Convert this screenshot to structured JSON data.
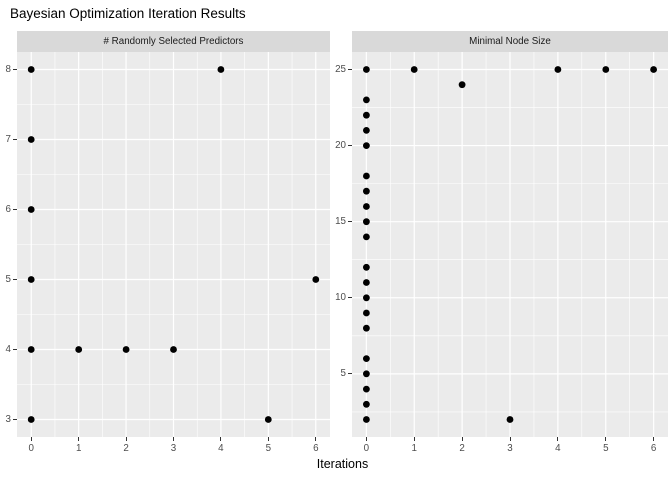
{
  "title": "Bayesian Optimization Iteration Results",
  "xlabel": "Iterations",
  "theme": {
    "background": "#FFFFFF",
    "panel_bg": "#EBEBEB",
    "strip_bg": "#D9D9D9",
    "grid_color": "#FFFFFF",
    "point_color": "#000000",
    "tick_color": "#333333",
    "tick_label_color": "#4D4D4D",
    "strip_text_color": "#1A1A1A",
    "title_color": "#000000"
  },
  "chart_data": [
    {
      "type": "scatter",
      "facet_title": "# Randomly Selected Predictors",
      "points": [
        [
          0,
          8
        ],
        [
          0,
          7
        ],
        [
          0,
          6
        ],
        [
          0,
          5
        ],
        [
          0,
          4
        ],
        [
          0,
          3
        ],
        [
          1,
          4
        ],
        [
          2,
          4
        ],
        [
          3,
          4
        ],
        [
          4,
          8
        ],
        [
          5,
          3
        ],
        [
          6,
          5
        ]
      ],
      "xlim": [
        -0.3,
        6.3
      ],
      "ylim": [
        2.75,
        8.25
      ],
      "xticks": [
        0,
        1,
        2,
        3,
        4,
        5,
        6
      ],
      "yticks": [
        3,
        4,
        5,
        6,
        7,
        8
      ],
      "xminor": [
        0.5,
        1.5,
        2.5,
        3.5,
        4.5,
        5.5
      ],
      "yminor": [
        3.5,
        4.5,
        5.5,
        6.5,
        7.5
      ],
      "grid": true,
      "legend": "none"
    },
    {
      "type": "scatter",
      "facet_title": "Minimal Node Size",
      "points": [
        [
          0,
          25
        ],
        [
          0,
          23
        ],
        [
          0,
          22
        ],
        [
          0,
          21
        ],
        [
          0,
          20
        ],
        [
          0,
          18
        ],
        [
          0,
          17
        ],
        [
          0,
          16
        ],
        [
          0,
          15
        ],
        [
          0,
          14
        ],
        [
          0,
          12
        ],
        [
          0,
          11
        ],
        [
          0,
          10
        ],
        [
          0,
          9
        ],
        [
          0,
          8
        ],
        [
          0,
          6
        ],
        [
          0,
          5
        ],
        [
          0,
          4
        ],
        [
          0,
          3
        ],
        [
          0,
          2
        ],
        [
          1,
          25
        ],
        [
          2,
          24
        ],
        [
          3,
          2
        ],
        [
          4,
          25
        ],
        [
          5,
          25
        ],
        [
          6,
          25
        ]
      ],
      "xlim": [
        -0.3,
        6.3
      ],
      "ylim": [
        0.85,
        26.15
      ],
      "xticks": [
        0,
        1,
        2,
        3,
        4,
        5,
        6
      ],
      "yticks": [
        5,
        10,
        15,
        20,
        25
      ],
      "xminor": [
        0.5,
        1.5,
        2.5,
        3.5,
        4.5,
        5.5
      ],
      "yminor": [
        2.5,
        7.5,
        12.5,
        17.5,
        22.5
      ],
      "grid": true,
      "legend": "none"
    }
  ]
}
